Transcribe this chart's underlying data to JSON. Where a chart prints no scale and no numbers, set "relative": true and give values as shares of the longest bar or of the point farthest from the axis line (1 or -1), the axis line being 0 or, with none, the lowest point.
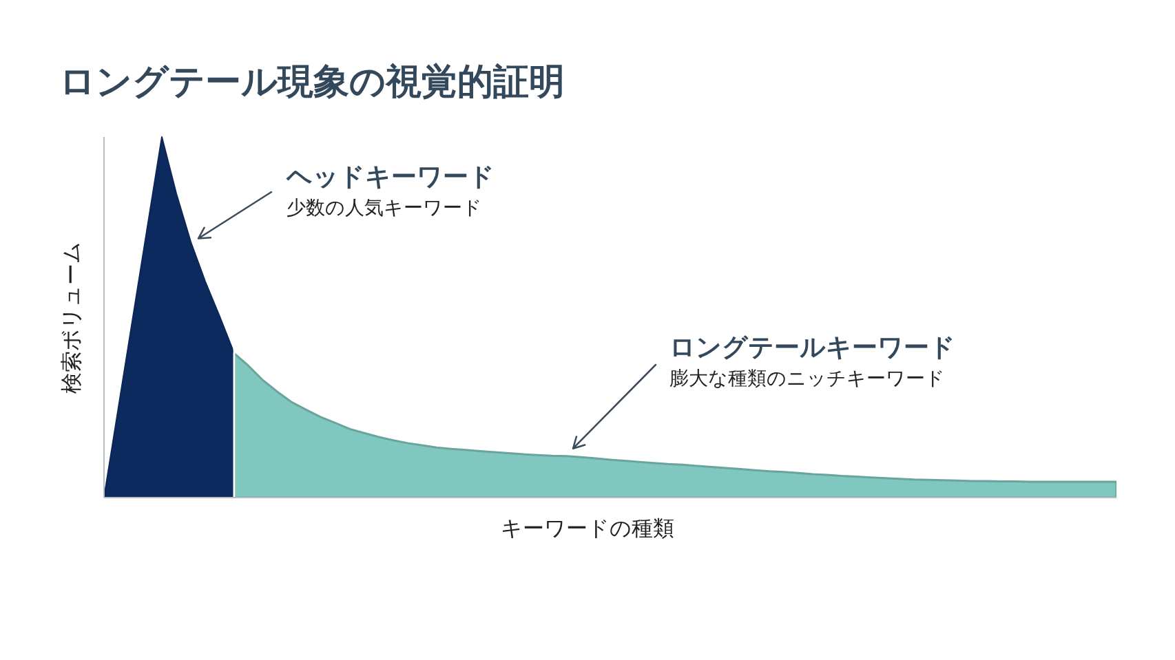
{
  "chart_data": {
    "type": "area",
    "title": "ロングテール現象の視覚的証明",
    "xlabel": "キーワードの種類",
    "ylabel": "検索ボリューム",
    "relative": true,
    "categories": [
      null,
      null,
      null,
      null,
      null,
      null,
      null,
      null,
      null,
      null,
      null,
      null,
      null,
      null,
      null,
      null,
      null,
      null,
      null,
      null,
      null,
      null,
      null,
      null,
      null,
      null,
      null,
      null,
      null,
      null,
      null,
      null,
      null,
      null,
      null,
      null,
      null,
      null,
      null,
      null,
      null,
      null,
      null,
      null,
      null,
      null,
      null,
      null,
      null,
      null,
      null,
      null,
      null,
      null,
      null,
      null,
      null,
      null,
      null,
      null,
      null,
      null,
      null,
      null,
      null,
      null,
      null,
      null,
      null,
      null,
      null
    ],
    "series": [
      {
        "color": "#0c2a5d",
        "values": [
          0,
          0.25,
          0.5,
          0.75,
          1,
          0.843,
          0.709,
          0.599,
          0.502,
          0.4,
          null,
          null,
          null,
          null,
          null,
          null,
          null,
          null,
          null,
          null,
          null,
          null,
          null,
          null,
          null,
          null,
          null,
          null,
          null,
          null,
          null,
          null,
          null,
          null,
          null,
          null,
          null,
          null,
          null,
          null,
          null,
          null,
          null,
          null,
          null,
          null,
          null,
          null,
          null,
          null,
          null,
          null,
          null,
          null,
          null,
          null,
          null,
          null,
          null,
          null,
          null,
          null,
          null,
          null,
          null,
          null,
          null,
          null,
          null,
          null,
          null
        ]
      },
      {
        "color": "#80c7bf",
        "values": [
          null,
          null,
          null,
          null,
          null,
          null,
          null,
          null,
          null,
          0.4,
          0.365,
          0.325,
          0.293,
          0.264,
          0.243,
          0.223,
          0.207,
          0.19,
          0.179,
          0.168,
          0.159,
          0.151,
          0.145,
          0.139,
          0.135,
          0.132,
          0.129,
          0.126,
          0.123,
          0.12,
          0.118,
          0.116,
          0.115,
          0.112,
          0.109,
          0.105,
          0.102,
          0.099,
          0.096,
          0.093,
          0.091,
          0.088,
          0.085,
          0.082,
          0.079,
          0.076,
          0.073,
          0.071,
          0.068,
          0.065,
          0.063,
          0.06,
          0.058,
          0.056,
          0.054,
          0.052,
          0.05,
          0.049,
          0.048,
          0.047,
          0.046,
          0.046,
          0.045,
          0.045,
          0.044,
          0.044,
          0.044,
          0.044,
          0.044,
          0.044,
          0.044
        ]
      }
    ],
    "annotations": [
      "ヘッドキーワード",
      "少数の人気キーワード",
      "ロングテールキーワード",
      "膨大な種類のニッチキーワード"
    ]
  }
}
